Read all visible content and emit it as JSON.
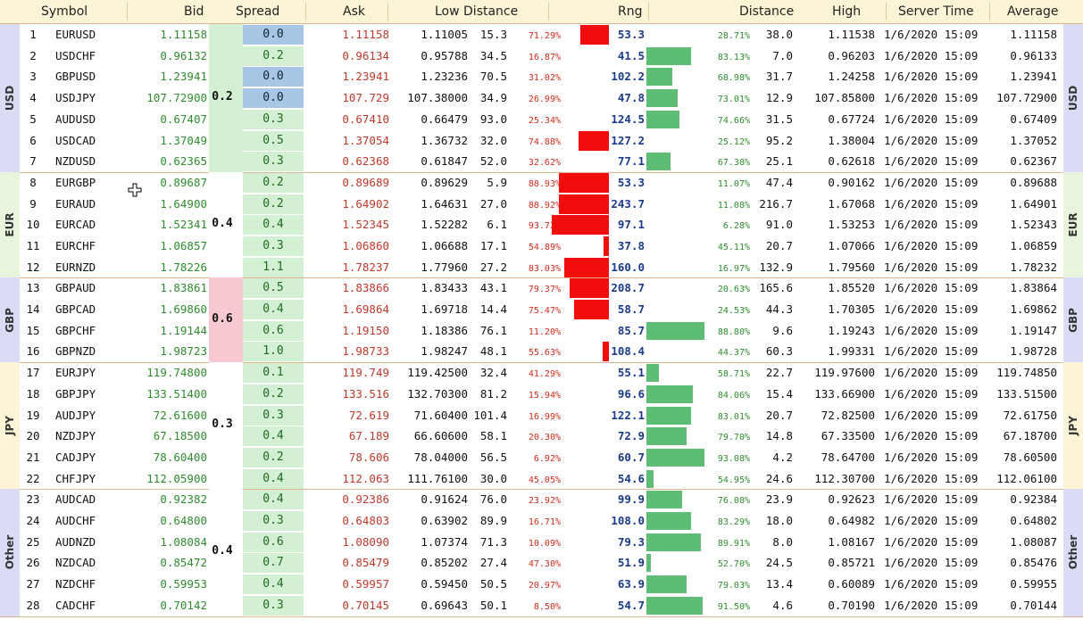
{
  "header": {
    "symbol": "Symbol",
    "bid": "Bid",
    "spread": "Spread",
    "ask": "Ask",
    "low_distance": "Low Distance",
    "rng": "Rng",
    "distance": "Distance",
    "high": "High",
    "server_time": "Server Time",
    "average": "Average"
  },
  "colors": {
    "header_bg": "#fbf4d6",
    "bid": "#2f8c2f",
    "ask": "#c0392b",
    "rng": "#1b3b8a",
    "red_bar": "#f20d0d",
    "green_bar": "#5dbd74",
    "spread_cell": "#d4f0d4",
    "spread_highlight": "#a7c6e6"
  },
  "groups": [
    {
      "label": "USD",
      "spread": "0.2",
      "side_color": "#d9dcf4",
      "spread_color": "#d4f0d4",
      "rows": [
        {
          "n": "1",
          "sym": "EURUSD",
          "bid": "1.11158",
          "spr": "0.0",
          "hl": true,
          "ask": "1.11158",
          "low": "1.11005",
          "ld": "15.3",
          "lp": "71.29%",
          "rb": 0.93,
          "rng": "53.3",
          "gb": 0,
          "hp": "28.71%",
          "hd": "38.0",
          "high": "1.11538",
          "time": "1/6/2020 15:09",
          "avg": "1.11158"
        },
        {
          "n": "2",
          "sym": "USDCHF",
          "bid": "0.96132",
          "spr": "0.2",
          "hl": false,
          "ask": "0.96134",
          "low": "0.95788",
          "ld": "34.5",
          "lp": "16.87%",
          "rb": 0,
          "rng": "41.5",
          "gb": 0.66,
          "hp": "83.13%",
          "hd": "7.0",
          "high": "0.96203",
          "time": "1/6/2020 15:09",
          "avg": "0.96133"
        },
        {
          "n": "3",
          "sym": "GBPUSD",
          "bid": "1.23941",
          "spr": "0.0",
          "hl": true,
          "ask": "1.23941",
          "low": "1.23236",
          "ld": "70.5",
          "lp": "31.02%",
          "rb": 0,
          "rng": "102.2",
          "gb": 0.38,
          "hp": "68.98%",
          "hd": "31.7",
          "high": "1.24258",
          "time": "1/6/2020 15:09",
          "avg": "1.23941"
        },
        {
          "n": "4",
          "sym": "USDJPY",
          "bid": "107.72900",
          "spr": "0.0",
          "hl": true,
          "ask": "107.729",
          "low": "107.38000",
          "ld": "34.9",
          "lp": "26.99%",
          "rb": 0,
          "rng": "47.8",
          "gb": 0.46,
          "hp": "73.01%",
          "hd": "12.9",
          "high": "107.85800",
          "time": "1/6/2020 15:09",
          "avg": "107.72900"
        },
        {
          "n": "5",
          "sym": "AUDUSD",
          "bid": "0.67407",
          "spr": "0.3",
          "hl": false,
          "ask": "0.67410",
          "low": "0.66479",
          "ld": "93.0",
          "lp": "25.34%",
          "rb": 0,
          "rng": "124.5",
          "gb": 0.49,
          "hp": "74.66%",
          "hd": "31.5",
          "high": "0.67724",
          "time": "1/6/2020 15:09",
          "avg": "0.67409"
        },
        {
          "n": "6",
          "sym": "USDCAD",
          "bid": "1.37049",
          "spr": "0.5",
          "hl": false,
          "ask": "1.37054",
          "low": "1.36732",
          "ld": "32.0",
          "lp": "74.88%",
          "rb": 1.0,
          "rng": "127.2",
          "gb": 0,
          "hp": "25.12%",
          "hd": "95.2",
          "high": "1.38004",
          "time": "1/6/2020 15:09",
          "avg": "1.37052"
        },
        {
          "n": "7",
          "sym": "NZDUSD",
          "bid": "0.62365",
          "spr": "0.3",
          "hl": false,
          "ask": "0.62368",
          "low": "0.61847",
          "ld": "52.0",
          "lp": "32.62%",
          "rb": 0,
          "rng": "77.1",
          "gb": 0.35,
          "hp": "67.38%",
          "hd": "25.1",
          "high": "0.62618",
          "time": "1/6/2020 15:09",
          "avg": "0.62367"
        }
      ]
    },
    {
      "label": "EUR",
      "spread": "0.4",
      "side_color": "#e9f4dd",
      "spread_color": "#ffffff",
      "rows": [
        {
          "n": "8",
          "sym": "EURGBP",
          "bid": "0.89687",
          "spr": "0.2",
          "hl": false,
          "ask": "0.89689",
          "low": "0.89629",
          "ld": "5.9",
          "lp": "88.93%",
          "rb": 1.65,
          "rng": "53.3",
          "gb": 0,
          "hp": "11.07%",
          "hd": "47.4",
          "high": "0.90162",
          "time": "1/6/2020 15:09",
          "avg": "0.89688"
        },
        {
          "n": "9",
          "sym": "EURAUD",
          "bid": "1.64900",
          "spr": "0.2",
          "hl": false,
          "ask": "1.64902",
          "low": "1.64631",
          "ld": "27.0",
          "lp": "88.92%",
          "rb": 1.65,
          "rng": "243.7",
          "gb": 0,
          "hp": "11.08%",
          "hd": "216.7",
          "high": "1.67068",
          "time": "1/6/2020 15:09",
          "avg": "1.64901"
        },
        {
          "n": "10",
          "sym": "EURCAD",
          "bid": "1.52341",
          "spr": "0.4",
          "hl": false,
          "ask": "1.52345",
          "low": "1.52282",
          "ld": "6.1",
          "lp": "93.72%",
          "rb": 1.87,
          "rng": "97.1",
          "gb": 0,
          "hp": "6.28%",
          "hd": "91.0",
          "high": "1.53253",
          "time": "1/6/2020 15:09",
          "avg": "1.52343"
        },
        {
          "n": "11",
          "sym": "EURCHF",
          "bid": "1.06857",
          "spr": "0.3",
          "hl": false,
          "ask": "1.06860",
          "low": "1.06688",
          "ld": "17.1",
          "lp": "54.89%",
          "rb": 0.18,
          "rng": "37.8",
          "gb": 0,
          "hp": "45.11%",
          "hd": "20.7",
          "high": "1.07066",
          "time": "1/6/2020 15:09",
          "avg": "1.06859"
        },
        {
          "n": "12",
          "sym": "EURNZD",
          "bid": "1.78226",
          "spr": "1.1",
          "hl": false,
          "ask": "1.78237",
          "low": "1.77960",
          "ld": "27.2",
          "lp": "83.03%",
          "rb": 1.47,
          "rng": "160.0",
          "gb": 0,
          "hp": "16.97%",
          "hd": "132.9",
          "high": "1.79560",
          "time": "1/6/2020 15:09",
          "avg": "1.78232"
        }
      ]
    },
    {
      "label": "GBP",
      "spread": "0.6",
      "side_color": "#d9dcf4",
      "spread_color": "#f8c9d0",
      "rows": [
        {
          "n": "13",
          "sym": "GBPAUD",
          "bid": "1.83861",
          "spr": "0.5",
          "hl": false,
          "ask": "1.83866",
          "low": "1.83433",
          "ld": "43.1",
          "lp": "79.37%",
          "rb": 1.3,
          "rng": "208.7",
          "gb": 0,
          "hp": "20.63%",
          "hd": "165.6",
          "high": "1.85520",
          "time": "1/6/2020 15:09",
          "avg": "1.83864"
        },
        {
          "n": "14",
          "sym": "GBPCAD",
          "bid": "1.69860",
          "spr": "0.4",
          "hl": false,
          "ask": "1.69864",
          "low": "1.69718",
          "ld": "14.4",
          "lp": "75.47%",
          "rb": 1.16,
          "rng": "58.7",
          "gb": 0,
          "hp": "24.53%",
          "hd": "44.3",
          "high": "1.70305",
          "time": "1/6/2020 15:09",
          "avg": "1.69862"
        },
        {
          "n": "15",
          "sym": "GBPCHF",
          "bid": "1.19144",
          "spr": "0.6",
          "hl": false,
          "ask": "1.19150",
          "low": "1.18386",
          "ld": "76.1",
          "lp": "11.20%",
          "rb": 0,
          "rng": "85.7",
          "gb": 0.85,
          "hp": "88.80%",
          "hd": "9.6",
          "high": "1.19243",
          "time": "1/6/2020 15:09",
          "avg": "1.19147"
        },
        {
          "n": "16",
          "sym": "GBPNZD",
          "bid": "1.98723",
          "spr": "1.0",
          "hl": false,
          "ask": "1.98733",
          "low": "1.98247",
          "ld": "48.1",
          "lp": "55.63%",
          "rb": 0.2,
          "rng": "108.4",
          "gb": 0,
          "hp": "44.37%",
          "hd": "60.3",
          "high": "1.99331",
          "time": "1/6/2020 15:09",
          "avg": "1.98728"
        }
      ]
    },
    {
      "label": "JPY",
      "spread": "0.3",
      "side_color": "#fbf4d6",
      "spread_color": "#ffffff",
      "rows": [
        {
          "n": "17",
          "sym": "EURJPY",
          "bid": "119.74800",
          "spr": "0.1",
          "hl": false,
          "ask": "119.749",
          "low": "119.42500",
          "ld": "32.4",
          "lp": "41.29%",
          "rb": 0,
          "rng": "55.1",
          "gb": 0.18,
          "hp": "58.71%",
          "hd": "22.7",
          "high": "119.97600",
          "time": "1/6/2020 15:09",
          "avg": "119.74850"
        },
        {
          "n": "18",
          "sym": "GBPJPY",
          "bid": "133.51400",
          "spr": "0.2",
          "hl": false,
          "ask": "133.516",
          "low": "132.70300",
          "ld": "81.2",
          "lp": "15.94%",
          "rb": 0,
          "rng": "96.6",
          "gb": 0.68,
          "hp": "84.06%",
          "hd": "15.4",
          "high": "133.66900",
          "time": "1/6/2020 15:09",
          "avg": "133.51500"
        },
        {
          "n": "19",
          "sym": "AUDJPY",
          "bid": "72.61600",
          "spr": "0.3",
          "hl": false,
          "ask": "72.619",
          "low": "71.60400",
          "ld": "101.4",
          "lp": "16.99%",
          "rb": 0,
          "rng": "122.1",
          "gb": 0.66,
          "hp": "83.01%",
          "hd": "20.7",
          "high": "72.82500",
          "time": "1/6/2020 15:09",
          "avg": "72.61750"
        },
        {
          "n": "20",
          "sym": "NZDJPY",
          "bid": "67.18500",
          "spr": "0.4",
          "hl": false,
          "ask": "67.189",
          "low": "66.60600",
          "ld": "58.1",
          "lp": "20.30%",
          "rb": 0,
          "rng": "72.9",
          "gb": 0.59,
          "hp": "79.70%",
          "hd": "14.8",
          "high": "67.33500",
          "time": "1/6/2020 15:09",
          "avg": "67.18700"
        },
        {
          "n": "21",
          "sym": "CADJPY",
          "bid": "78.60400",
          "spr": "0.2",
          "hl": false,
          "ask": "78.606",
          "low": "78.04000",
          "ld": "56.5",
          "lp": "6.92%",
          "rb": 0,
          "rng": "60.7",
          "gb": 0.86,
          "hp": "93.08%",
          "hd": "4.2",
          "high": "78.64700",
          "time": "1/6/2020 15:09",
          "avg": "78.60500"
        },
        {
          "n": "22",
          "sym": "CHFJPY",
          "bid": "112.05900",
          "spr": "0.4",
          "hl": false,
          "ask": "112.063",
          "low": "111.76100",
          "ld": "30.0",
          "lp": "45.05%",
          "rb": 0,
          "rng": "54.6",
          "gb": 0.1,
          "hp": "54.95%",
          "hd": "24.6",
          "high": "112.30700",
          "time": "1/6/2020 15:09",
          "avg": "112.06100"
        }
      ]
    },
    {
      "label": "Other",
      "spread": "0.4",
      "side_color": "#d9dcf4",
      "spread_color": "#ffffff",
      "rows": [
        {
          "n": "23",
          "sym": "AUDCAD",
          "bid": "0.92382",
          "spr": "0.4",
          "hl": false,
          "ask": "0.92386",
          "low": "0.91624",
          "ld": "76.0",
          "lp": "23.92%",
          "rb": 0,
          "rng": "99.9",
          "gb": 0.52,
          "hp": "76.08%",
          "hd": "23.9",
          "high": "0.92623",
          "time": "1/6/2020 15:09",
          "avg": "0.92384"
        },
        {
          "n": "24",
          "sym": "AUDCHF",
          "bid": "0.64800",
          "spr": "0.3",
          "hl": false,
          "ask": "0.64803",
          "low": "0.63902",
          "ld": "89.9",
          "lp": "16.71%",
          "rb": 0,
          "rng": "108.0",
          "gb": 0.66,
          "hp": "83.29%",
          "hd": "18.0",
          "high": "0.64982",
          "time": "1/6/2020 15:09",
          "avg": "0.64802"
        },
        {
          "n": "25",
          "sym": "AUDNZD",
          "bid": "1.08084",
          "spr": "0.6",
          "hl": false,
          "ask": "1.08090",
          "low": "1.07374",
          "ld": "71.3",
          "lp": "10.09%",
          "rb": 0,
          "rng": "79.3",
          "gb": 0.8,
          "hp": "89.91%",
          "hd": "8.0",
          "high": "1.08167",
          "time": "1/6/2020 15:09",
          "avg": "1.08087"
        },
        {
          "n": "26",
          "sym": "NZDCAD",
          "bid": "0.85472",
          "spr": "0.7",
          "hl": false,
          "ask": "0.85479",
          "low": "0.85202",
          "ld": "27.4",
          "lp": "47.30%",
          "rb": 0,
          "rng": "51.9",
          "gb": 0.06,
          "hp": "52.70%",
          "hd": "24.5",
          "high": "0.85721",
          "time": "1/6/2020 15:09",
          "avg": "0.85476"
        },
        {
          "n": "27",
          "sym": "NZDCHF",
          "bid": "0.59953",
          "spr": "0.4",
          "hl": false,
          "ask": "0.59957",
          "low": "0.59450",
          "ld": "50.5",
          "lp": "20.97%",
          "rb": 0,
          "rng": "63.9",
          "gb": 0.59,
          "hp": "79.03%",
          "hd": "13.4",
          "high": "0.60089",
          "time": "1/6/2020 15:09",
          "avg": "0.59955"
        },
        {
          "n": "28",
          "sym": "CADCHF",
          "bid": "0.70142",
          "spr": "0.3",
          "hl": false,
          "ask": "0.70145",
          "low": "0.69643",
          "ld": "50.1",
          "lp": "8.50%",
          "rb": 0,
          "rng": "54.7",
          "gb": 0.83,
          "hp": "91.50%",
          "hd": "4.6",
          "high": "0.70190",
          "time": "1/6/2020 15:09",
          "avg": "0.70144"
        }
      ]
    }
  ]
}
